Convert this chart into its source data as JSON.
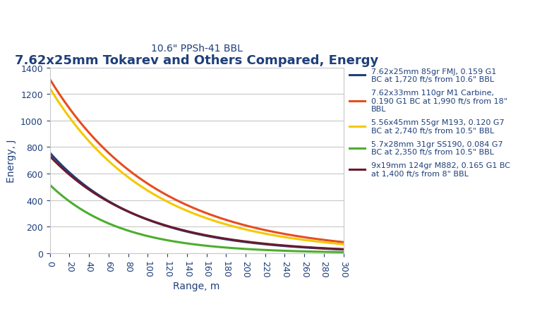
{
  "title": "7.62x25mm Tokarev and Others Compared, Energy",
  "subtitle": "10.6\" PPSh-41 BBL",
  "xlabel": "Range, m",
  "ylabel": "Energy, J",
  "xlim": [
    0,
    300
  ],
  "ylim": [
    0,
    1400
  ],
  "xticks": [
    0,
    20,
    40,
    60,
    80,
    100,
    120,
    140,
    160,
    180,
    200,
    220,
    240,
    260,
    280,
    300
  ],
  "yticks": [
    0,
    200,
    400,
    600,
    800,
    1000,
    1200,
    1400
  ],
  "series": [
    {
      "label": "7.62x25mm 85gr FMJ, 0.159 G1\nBC at 1,720 ft/s from 10.6\" BBL",
      "color": "#1f3f7a",
      "mass_gr": 85,
      "v0_fps": 1720,
      "bc": 0.159,
      "bc_type": "G1"
    },
    {
      "label": "7.62x33mm 110gr M1 Carbine,\n0.190 G1 BC at 1,990 ft/s from 18\"\nBBL",
      "color": "#e84c1e",
      "mass_gr": 110,
      "v0_fps": 1990,
      "bc": 0.19,
      "bc_type": "G1"
    },
    {
      "label": "5.56x45mm 55gr M193, 0.120 G7\nBC at 2,740 ft/s from 10.5\" BBL",
      "color": "#f5c800",
      "mass_gr": 55,
      "v0_fps": 2740,
      "bc": 0.12,
      "bc_type": "G7"
    },
    {
      "label": "5.7x28mm 31gr SS190, 0.084 G7\nBC at 2,350 ft/s from 10.5\" BBL",
      "color": "#4cae2e",
      "mass_gr": 31,
      "v0_fps": 2350,
      "bc": 0.084,
      "bc_type": "G7"
    },
    {
      "label": "9x19mm 124gr M882, 0.165 G1 BC\nat 1,400 ft/s from 8\" BBL",
      "color": "#6b1a2e",
      "mass_gr": 124,
      "v0_fps": 1400,
      "bc": 0.165,
      "bc_type": "G1"
    }
  ],
  "background_color": "#ffffff",
  "grid_color": "#c8c8c8",
  "title_color": "#1f3f7a",
  "subtitle_color": "#1f3f7a",
  "axis_label_color": "#1f3f7a",
  "tick_label_color": "#1f3f7a",
  "title_fontsize": 13,
  "subtitle_fontsize": 10,
  "axis_label_fontsize": 10,
  "tick_fontsize": 9,
  "legend_fontsize": 8,
  "linewidth": 2.2
}
